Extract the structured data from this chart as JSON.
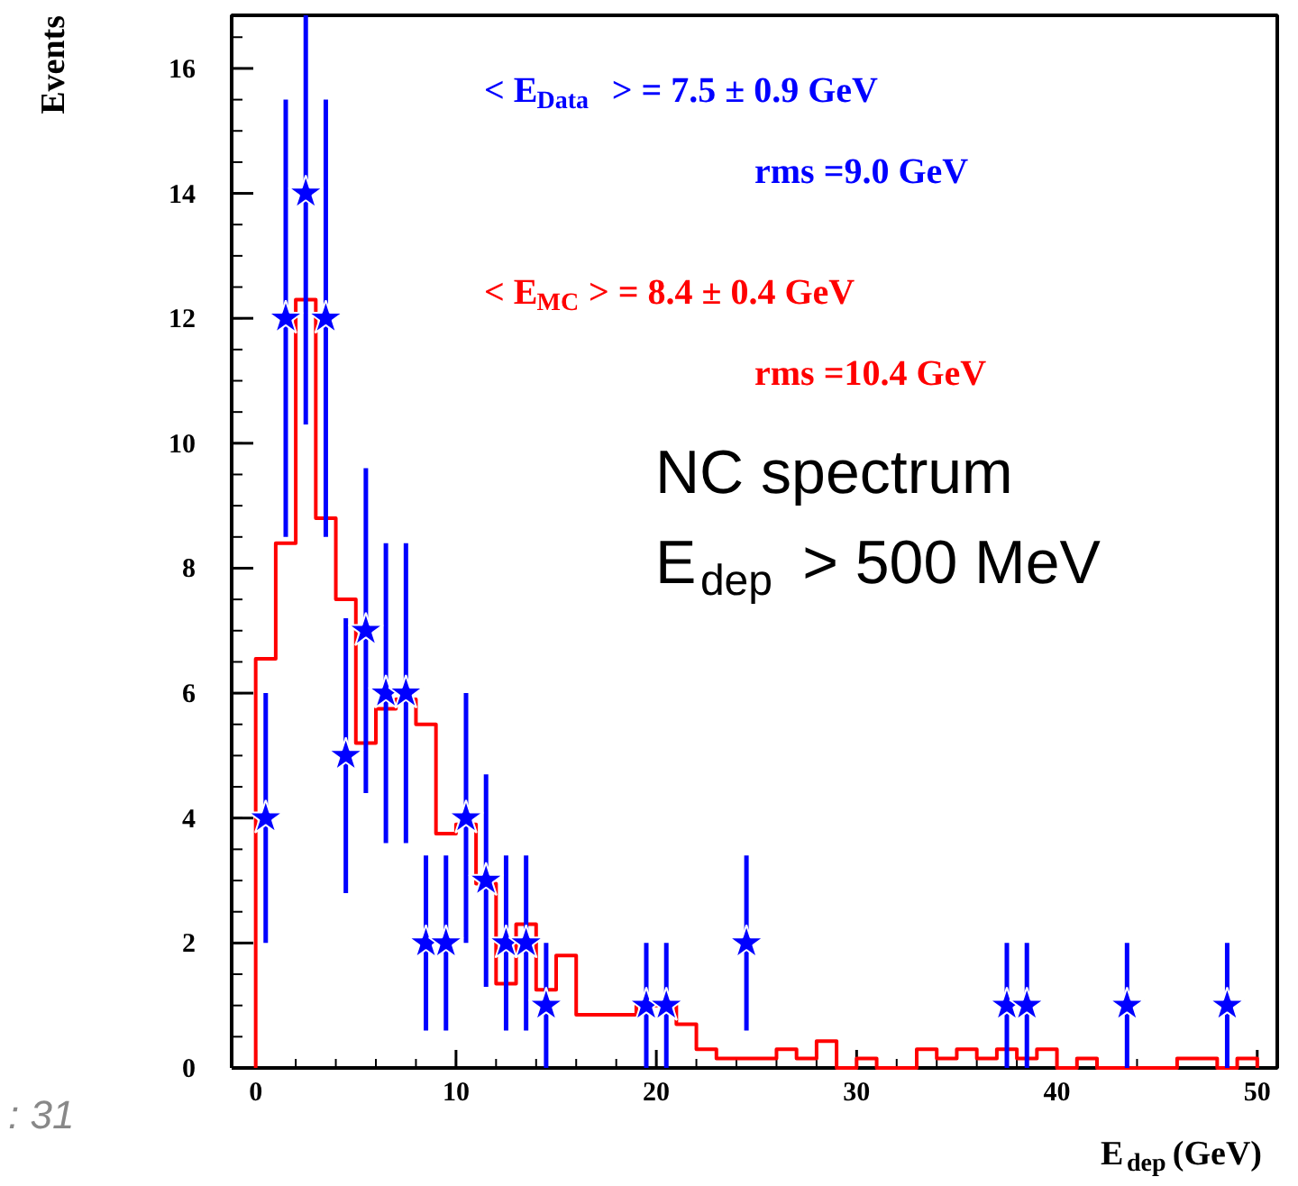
{
  "chart_data": {
    "type": "histogram",
    "xlabel": "E$_{dep}$(GeV)",
    "ylabel": "Events",
    "xlim": [
      -1.2,
      51
    ],
    "ylim": [
      0,
      16.85
    ],
    "xticks": [
      0,
      10,
      20,
      30,
      40,
      50
    ],
    "yticks": [
      0,
      2,
      4,
      6,
      8,
      10,
      12,
      14,
      16
    ],
    "grid": false,
    "series": [
      {
        "type": "histogram",
        "color": "#ff0000",
        "bins": [
          0,
          1,
          2,
          3,
          4,
          5,
          6,
          7,
          8,
          9,
          10,
          11,
          12,
          13,
          14,
          15,
          16,
          17,
          18,
          19,
          20,
          21,
          22,
          23,
          24,
          25,
          26,
          27,
          28,
          29,
          30,
          31,
          32,
          33,
          34,
          35,
          36,
          37,
          38,
          39,
          40,
          41,
          42,
          43,
          44,
          45,
          46,
          47,
          48,
          49,
          50
        ],
        "values": [
          6.55,
          8.4,
          12.3,
          8.8,
          7.5,
          5.2,
          5.75,
          5.9,
          5.5,
          3.75,
          3.9,
          2.95,
          1.35,
          2.3,
          1.25,
          1.8,
          0.85,
          0.85,
          0.85,
          1.0,
          1.0,
          0.7,
          0.3,
          0.15,
          0.15,
          0.15,
          0.3,
          0.15,
          0.43,
          0,
          0.15,
          0,
          0,
          0.3,
          0.15,
          0.3,
          0.15,
          0.3,
          0.15,
          0.3,
          0,
          0.15,
          0,
          0,
          0,
          0,
          0.15,
          0.15,
          0,
          0.15
        ]
      },
      {
        "type": "scatter",
        "color": "#0000ff",
        "marker": "star",
        "x": [
          0.5,
          1.5,
          2.5,
          3.5,
          4.5,
          5.5,
          6.5,
          7.5,
          8.5,
          9.5,
          10.5,
          11.5,
          12.5,
          13.5,
          14.5,
          19.5,
          20.5,
          24.5,
          37.5,
          38.5,
          43.5,
          48.5
        ],
        "values": [
          4,
          12,
          14,
          12,
          5,
          7,
          6,
          6,
          2,
          2,
          4,
          3,
          2,
          2,
          1,
          1,
          1,
          2,
          1,
          1,
          1,
          1
        ],
        "errors": [
          [
            2,
            6
          ],
          [
            8.5,
            15.5
          ],
          [
            10.3,
            16.85
          ],
          [
            8.5,
            15.5
          ],
          [
            2.8,
            7.2
          ],
          [
            4.4,
            9.6
          ],
          [
            3.6,
            8.4
          ],
          [
            3.6,
            8.4
          ],
          [
            0.6,
            3.4
          ],
          [
            0.6,
            3.4
          ],
          [
            2,
            6
          ],
          [
            1.3,
            4.7
          ],
          [
            0.6,
            3.4
          ],
          [
            0.6,
            3.4
          ],
          [
            0,
            2
          ],
          [
            0,
            2
          ],
          [
            0,
            2
          ],
          [
            0.6,
            3.4
          ],
          [
            0,
            2
          ],
          [
            0,
            2
          ],
          [
            0,
            2
          ],
          [
            0,
            2
          ]
        ]
      }
    ],
    "annotations": [
      "< E$_{Data}$ >   = 7.5 ± 0.9 GeV",
      "rms =9.0 GeV",
      "< E$_{MC}$ >   = 8.4 ± 0.4 GeV",
      "rms =10.4 GeV",
      "NC spectrum",
      "E$_{dep}$ > 500 MeV",
      ": 31"
    ]
  }
}
